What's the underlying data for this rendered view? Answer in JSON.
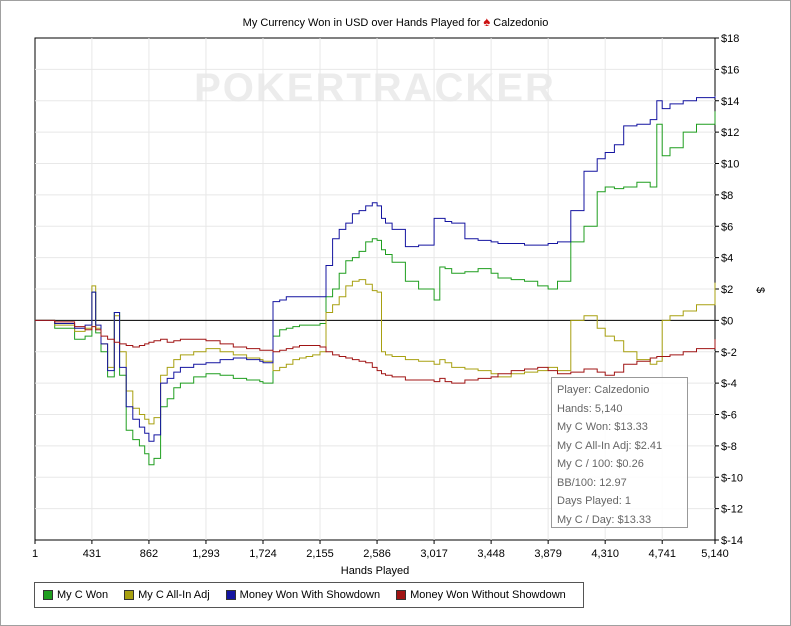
{
  "chart_data": {
    "type": "line",
    "title": "My Currency Won in USD over Hands Played for",
    "player": "Calzedonio",
    "watermark": "POKERTRACKER",
    "xlabel": "Hands Played",
    "ylabel": "$",
    "xlim": [
      1,
      5140
    ],
    "ylim": [
      -14,
      18
    ],
    "x_ticks": [
      "1",
      "431",
      "862",
      "1,293",
      "1,724",
      "2,155",
      "2,586",
      "3,017",
      "3,448",
      "3,879",
      "4,310",
      "4,741",
      "5,140"
    ],
    "y_ticks": [
      "$18",
      "$16",
      "$14",
      "$12",
      "$10",
      "$8",
      "$6",
      "$4",
      "$2",
      "$0",
      "$-2",
      "$-4",
      "$-6",
      "$-8",
      "$-10",
      "$-12",
      "$-14"
    ],
    "grid": true,
    "series": [
      {
        "name": "My C Won",
        "color": "#1f9e1f",
        "x": [
          1,
          150,
          300,
          380,
          431,
          460,
          500,
          550,
          600,
          640,
          690,
          740,
          790,
          830,
          862,
          900,
          950,
          1000,
          1050,
          1100,
          1200,
          1293,
          1400,
          1500,
          1600,
          1700,
          1724,
          1800,
          1850,
          1900,
          1950,
          2000,
          2050,
          2100,
          2155,
          2200,
          2250,
          2300,
          2350,
          2400,
          2450,
          2500,
          2550,
          2586,
          2620,
          2650,
          2700,
          2800,
          2900,
          3017,
          3060,
          3100,
          3150,
          3250,
          3350,
          3448,
          3500,
          3600,
          3700,
          3800,
          3879,
          3950,
          4050,
          4150,
          4250,
          4310,
          4380,
          4450,
          4550,
          4650,
          4700,
          4741,
          4800,
          4900,
          5000,
          5140
        ],
        "y": [
          0,
          -0.5,
          -1.2,
          -1,
          1.8,
          -0.8,
          -2,
          -3.6,
          0.5,
          -3.5,
          -7,
          -7.6,
          -8,
          -8.5,
          -9.2,
          -8.8,
          -5.5,
          -5,
          -4.3,
          -4,
          -3.6,
          -3.4,
          -3.5,
          -3.7,
          -3.8,
          -3.9,
          -4,
          -1,
          -0.6,
          -0.5,
          -0.4,
          -0.3,
          -0.3,
          -0.3,
          -0.2,
          1.5,
          2,
          3,
          3.8,
          4,
          4.4,
          5,
          5.2,
          5.1,
          4.5,
          4.2,
          3.7,
          2.5,
          2,
          1.3,
          3.4,
          3.3,
          3,
          3.1,
          3.3,
          3,
          2.7,
          2.6,
          2.5,
          2.2,
          2,
          2.5,
          5,
          6,
          8.2,
          8.5,
          8.4,
          8.5,
          8.8,
          8.5,
          12.5,
          10.5,
          11,
          12,
          12.5,
          13.33
        ]
      },
      {
        "name": "My C All-In Adj",
        "color": "#a8a010",
        "x": [
          1,
          150,
          300,
          380,
          431,
          460,
          500,
          550,
          600,
          640,
          690,
          740,
          790,
          830,
          862,
          900,
          950,
          1000,
          1050,
          1100,
          1200,
          1293,
          1400,
          1500,
          1600,
          1700,
          1724,
          1800,
          1850,
          1900,
          1950,
          2000,
          2050,
          2100,
          2155,
          2200,
          2250,
          2300,
          2350,
          2400,
          2450,
          2500,
          2550,
          2586,
          2620,
          2650,
          2700,
          2800,
          2900,
          3017,
          3060,
          3100,
          3150,
          3250,
          3350,
          3448,
          3500,
          3600,
          3700,
          3800,
          3879,
          3950,
          4050,
          4150,
          4250,
          4310,
          4380,
          4450,
          4550,
          4650,
          4700,
          4741,
          4800,
          4900,
          5000,
          5140
        ],
        "y": [
          0,
          -0.3,
          -0.7,
          -0.5,
          2.2,
          -0.5,
          -1.5,
          -3,
          0.3,
          -2,
          -4.5,
          -5.6,
          -6,
          -6.3,
          -6.6,
          -6.2,
          -3.5,
          -3,
          -2.5,
          -2.2,
          -2,
          -1.8,
          -2,
          -2.2,
          -2.4,
          -2.5,
          -2.6,
          -3.2,
          -3,
          -2.8,
          -2.5,
          -2.4,
          -2.3,
          -2.2,
          -2,
          0.5,
          1,
          1.5,
          2.2,
          2.5,
          2.6,
          2.3,
          1.9,
          1.8,
          -2,
          -2.2,
          -2.3,
          -2.5,
          -2.6,
          -2.8,
          -2.5,
          -2.7,
          -3,
          -3.1,
          -3.2,
          -3.4,
          -3.6,
          -3.4,
          -3.3,
          -3.2,
          -3,
          -3.2,
          0,
          0.3,
          -0.5,
          -1,
          -1.3,
          -2,
          -2.5,
          -2.8,
          -2.6,
          0,
          0.3,
          0.6,
          1,
          2.41
        ]
      },
      {
        "name": "Money Won With Showdown",
        "color": "#1414a0",
        "x": [
          1,
          150,
          300,
          380,
          431,
          460,
          500,
          550,
          600,
          640,
          690,
          740,
          790,
          830,
          862,
          900,
          950,
          1000,
          1050,
          1100,
          1200,
          1293,
          1400,
          1500,
          1600,
          1700,
          1724,
          1800,
          1850,
          1900,
          1950,
          2000,
          2050,
          2100,
          2155,
          2200,
          2250,
          2300,
          2350,
          2400,
          2450,
          2500,
          2550,
          2586,
          2620,
          2650,
          2700,
          2800,
          2900,
          3017,
          3060,
          3100,
          3150,
          3250,
          3350,
          3448,
          3500,
          3600,
          3700,
          3800,
          3879,
          3950,
          4050,
          4150,
          4250,
          4310,
          4380,
          4450,
          4550,
          4650,
          4700,
          4741,
          4800,
          4900,
          5000,
          5140
        ],
        "y": [
          0,
          -0.2,
          -0.5,
          -0.3,
          1.8,
          -0.3,
          -1.5,
          -3.2,
          0.5,
          -3,
          -5.5,
          -6.3,
          -6.8,
          -7.2,
          -7.7,
          -7.3,
          -4,
          -3.7,
          -3.3,
          -3,
          -2.8,
          -2.7,
          -2.5,
          -2.4,
          -2.5,
          -2.6,
          -2.7,
          1.2,
          1.3,
          1.5,
          1.5,
          1.5,
          1.5,
          1.5,
          1.5,
          3.5,
          5.2,
          5.8,
          6.2,
          6.8,
          7,
          7.3,
          7.5,
          7.3,
          6.5,
          6.2,
          5.8,
          4.7,
          4.8,
          6.5,
          6.5,
          6.3,
          6.2,
          5.2,
          5.1,
          5,
          4.9,
          4.9,
          4.8,
          4.8,
          4.9,
          5,
          7,
          9.5,
          10.3,
          10.7,
          11.2,
          12.4,
          12.5,
          12.8,
          14,
          13.5,
          13.8,
          14,
          14.2,
          14.3
        ]
      },
      {
        "name": "Money Won Without Showdown",
        "color": "#a01414",
        "x": [
          1,
          150,
          300,
          380,
          431,
          460,
          500,
          550,
          600,
          640,
          690,
          740,
          790,
          830,
          862,
          900,
          950,
          1000,
          1050,
          1100,
          1200,
          1293,
          1400,
          1500,
          1600,
          1700,
          1724,
          1800,
          1850,
          1900,
          1950,
          2000,
          2050,
          2100,
          2155,
          2200,
          2250,
          2300,
          2350,
          2400,
          2450,
          2500,
          2550,
          2586,
          2620,
          2650,
          2700,
          2800,
          2900,
          3017,
          3060,
          3100,
          3150,
          3250,
          3350,
          3448,
          3500,
          3600,
          3700,
          3800,
          3879,
          3950,
          4050,
          4150,
          4250,
          4310,
          4380,
          4450,
          4550,
          4650,
          4700,
          4741,
          4800,
          4900,
          5000,
          5140
        ],
        "y": [
          0,
          -0.1,
          -0.4,
          -0.6,
          -0.4,
          -0.6,
          -1,
          -1.2,
          -1.4,
          -1.5,
          -1.6,
          -1.7,
          -1.6,
          -1.5,
          -1.4,
          -1.3,
          -1.2,
          -1.4,
          -1.3,
          -1.2,
          -1.2,
          -1.3,
          -1.5,
          -1.7,
          -1.8,
          -1.9,
          -1.9,
          -2,
          -1.9,
          -1.8,
          -1.7,
          -1.6,
          -1.6,
          -1.6,
          -1.7,
          -2,
          -2.2,
          -2.3,
          -2.4,
          -2.5,
          -2.6,
          -2.7,
          -3,
          -3.2,
          -3.4,
          -3.5,
          -3.6,
          -3.8,
          -3.8,
          -3.9,
          -3.7,
          -3.9,
          -4,
          -3.8,
          -3.7,
          -3.6,
          -3.4,
          -3.2,
          -3.1,
          -3,
          -3.2,
          -3.4,
          -3.3,
          -3.1,
          -3.3,
          -3.5,
          -3.3,
          -2.8,
          -2.6,
          -2.4,
          -2.3,
          -2.3,
          -2.2,
          -2,
          -1.8,
          -1.2
        ]
      }
    ]
  },
  "tooltip": {
    "player": "Player: Calzedonio",
    "hands": "Hands: 5,140",
    "won": "My C Won: $13.33",
    "allin": "My C All-In Adj: $2.41",
    "per100": "My C / 100: $0.26",
    "bb100": "BB/100: 12.97",
    "days": "Days Played: 1",
    "perday": "My C / Day: $13.33"
  }
}
